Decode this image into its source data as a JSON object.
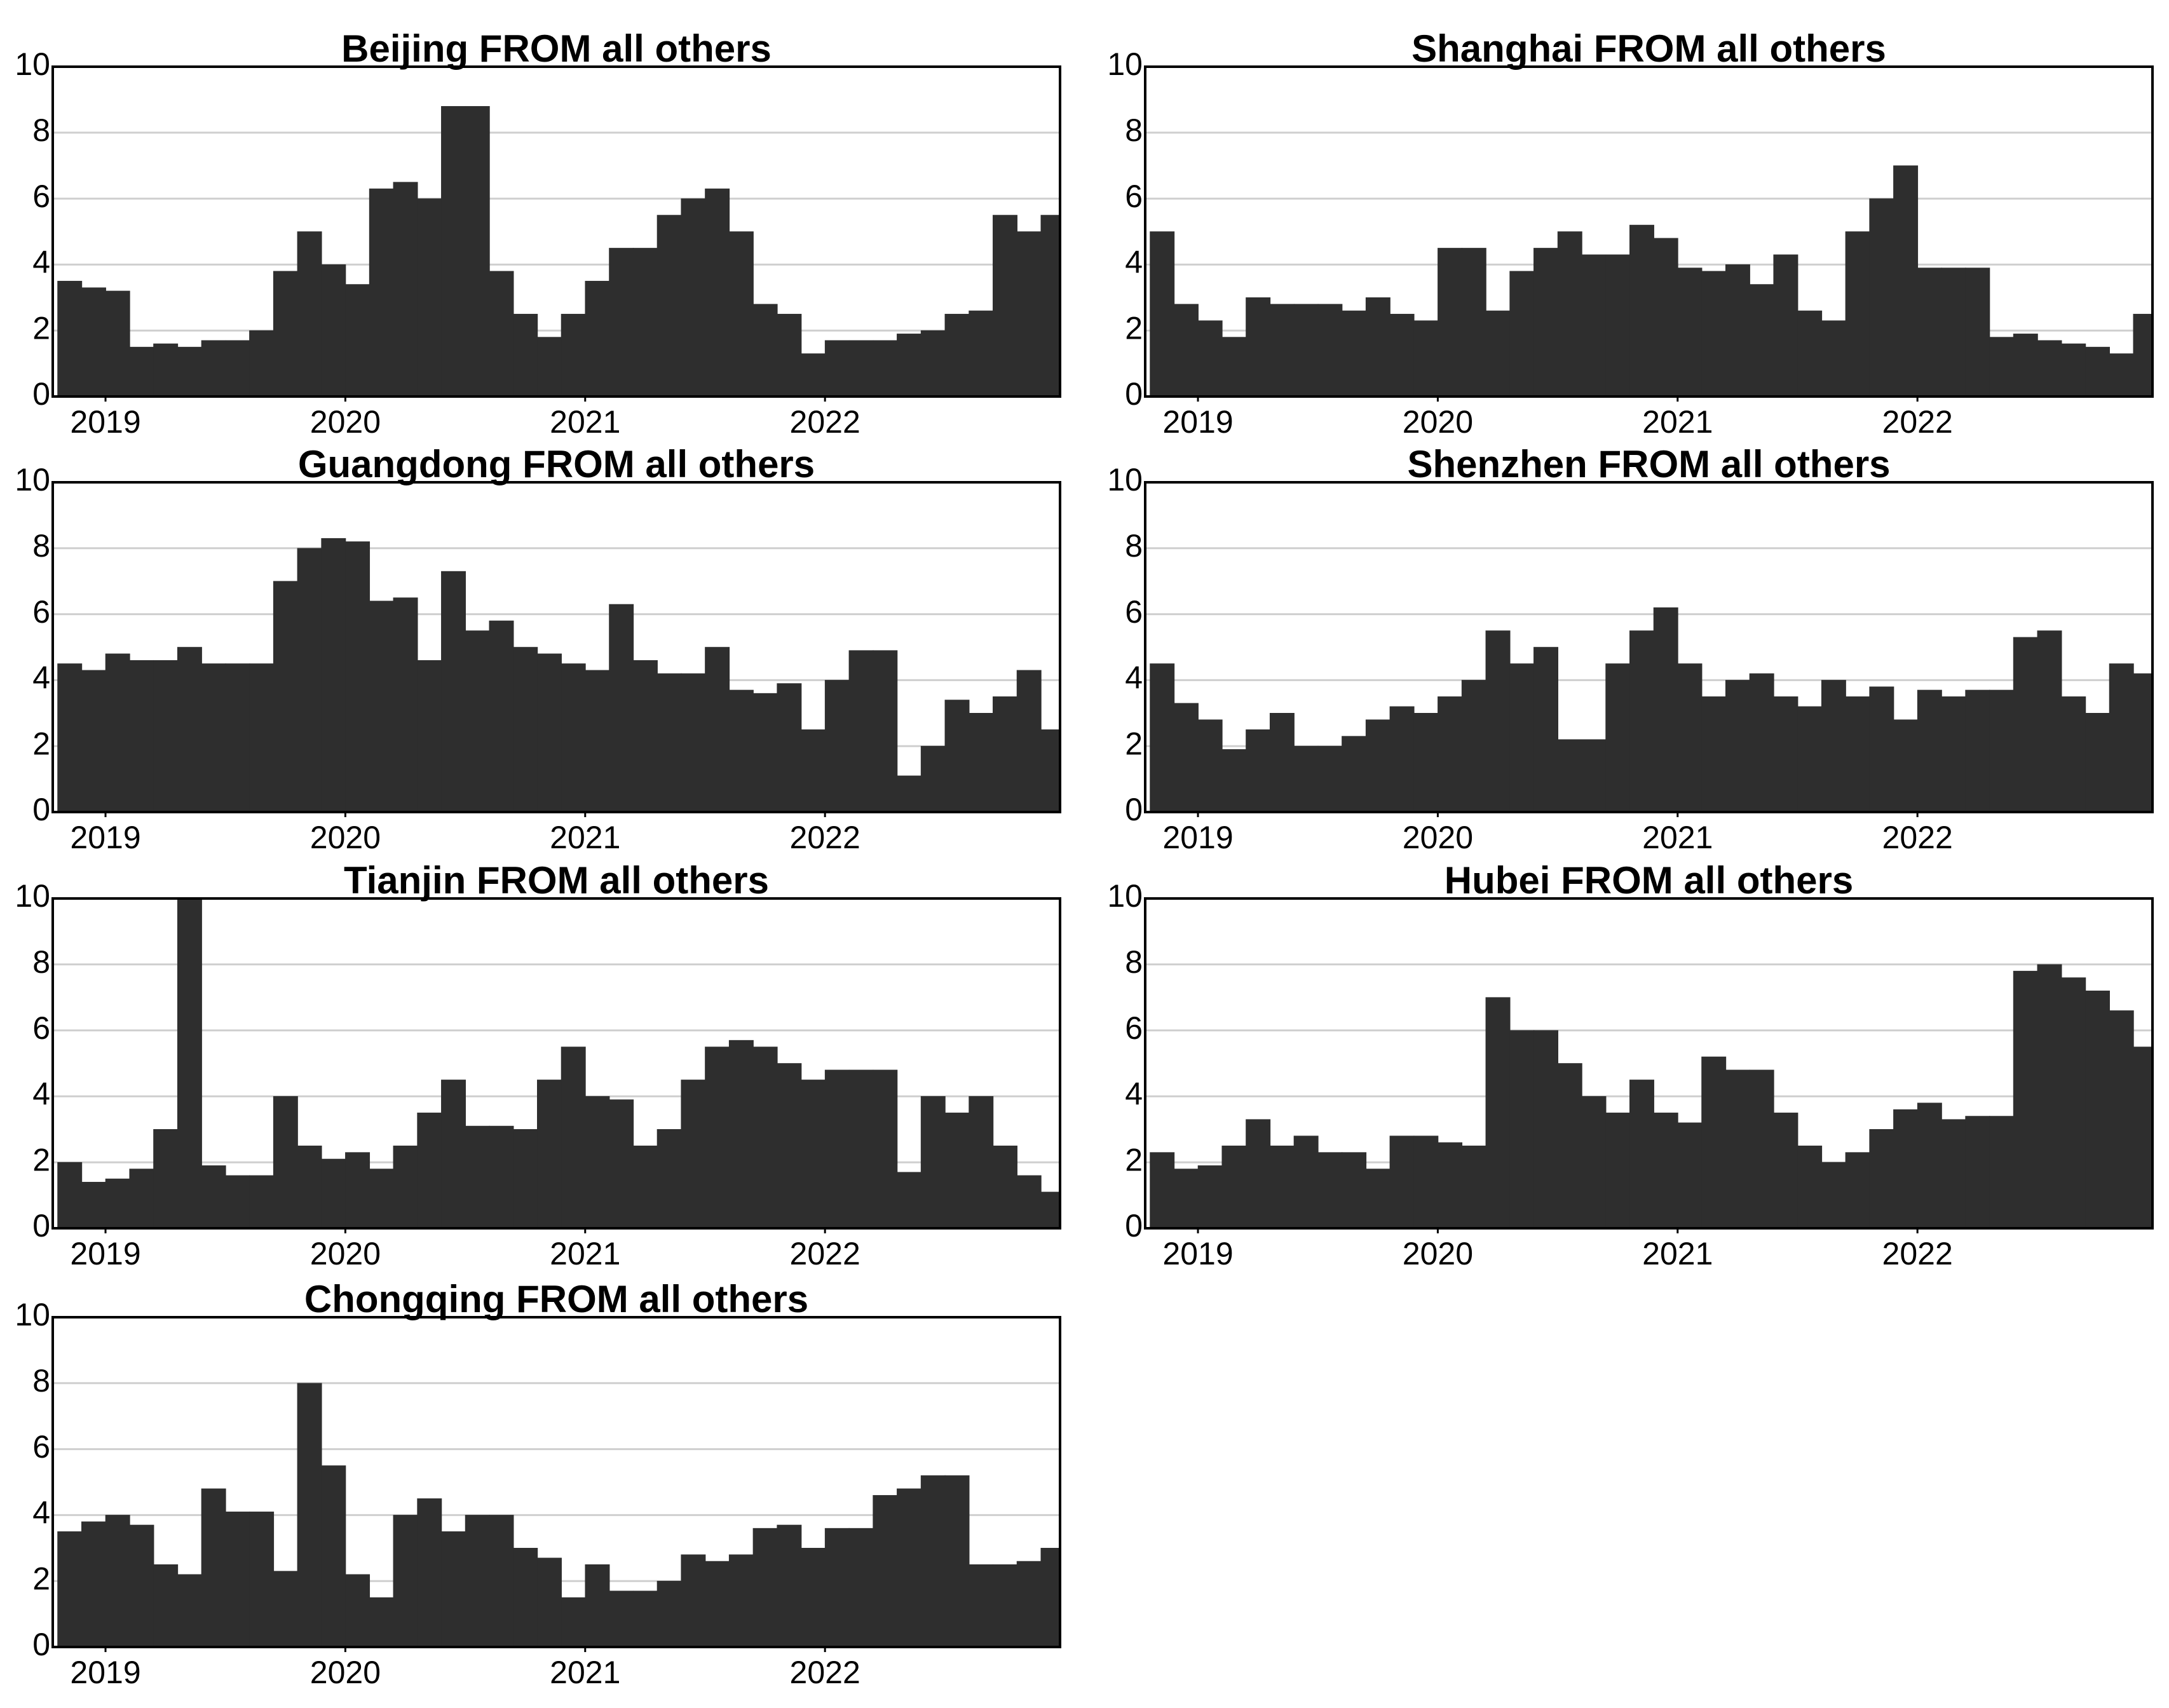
{
  "chart_data": [
    {
      "type": "area",
      "title": "Beijing FROM all others",
      "color": "#2e2e2e",
      "grid": true,
      "x": [
        2018.8,
        2018.9,
        2019.0,
        2019.1,
        2019.2,
        2019.3,
        2019.4,
        2019.5,
        2019.6,
        2019.7,
        2019.8,
        2019.9,
        2020.0,
        2020.1,
        2020.2,
        2020.3,
        2020.4,
        2020.5,
        2020.6,
        2020.7,
        2020.8,
        2020.9,
        2021.0,
        2021.1,
        2021.2,
        2021.3,
        2021.4,
        2021.5,
        2021.6,
        2021.7,
        2021.8,
        2021.9,
        2022.0,
        2022.1,
        2022.2,
        2022.3,
        2022.4,
        2022.5,
        2022.6,
        2022.7,
        2022.8,
        2022.9
      ],
      "values": [
        3.5,
        3.3,
        3.2,
        1.5,
        1.6,
        1.5,
        1.7,
        1.7,
        2.0,
        3.8,
        5.0,
        4.0,
        3.4,
        6.3,
        6.5,
        6.0,
        8.8,
        8.8,
        3.8,
        2.5,
        1.8,
        2.5,
        3.5,
        4.5,
        4.5,
        5.5,
        6.0,
        6.3,
        5.0,
        2.8,
        2.5,
        1.3,
        1.7,
        1.7,
        1.7,
        1.9,
        2.0,
        2.5,
        2.6,
        5.5,
        5.0,
        5.5
      ],
      "xlim": [
        2018.78,
        2022.98
      ],
      "ylim": [
        0,
        10
      ],
      "xticks": [
        2019,
        2020,
        2021,
        2022
      ],
      "yticks": [
        0,
        2,
        4,
        6,
        8,
        10
      ]
    },
    {
      "type": "area",
      "title": "Shanghai FROM all others",
      "color": "#2e2e2e",
      "grid": true,
      "x": [
        2018.8,
        2018.9,
        2019.0,
        2019.1,
        2019.2,
        2019.3,
        2019.4,
        2019.5,
        2019.6,
        2019.7,
        2019.8,
        2019.9,
        2020.0,
        2020.1,
        2020.2,
        2020.3,
        2020.4,
        2020.5,
        2020.6,
        2020.7,
        2020.8,
        2020.9,
        2021.0,
        2021.1,
        2021.2,
        2021.3,
        2021.4,
        2021.5,
        2021.6,
        2021.7,
        2021.8,
        2021.9,
        2022.0,
        2022.1,
        2022.2,
        2022.3,
        2022.4,
        2022.5,
        2022.6,
        2022.7,
        2022.8,
        2022.9
      ],
      "values": [
        5.0,
        2.8,
        2.3,
        1.8,
        3.0,
        2.8,
        2.8,
        2.8,
        2.6,
        3.0,
        2.5,
        2.3,
        4.5,
        4.5,
        2.6,
        3.8,
        4.5,
        5.0,
        4.3,
        4.3,
        5.2,
        4.8,
        3.9,
        3.8,
        4.0,
        3.4,
        4.3,
        2.6,
        2.3,
        5.0,
        6.0,
        7.0,
        3.9,
        3.9,
        3.9,
        1.8,
        1.9,
        1.7,
        1.6,
        1.5,
        1.3,
        2.5
      ],
      "xlim": [
        2018.78,
        2022.98
      ],
      "ylim": [
        0,
        10
      ],
      "xticks": [
        2019,
        2020,
        2021,
        2022
      ],
      "yticks": [
        0,
        2,
        4,
        6,
        8,
        10
      ]
    },
    {
      "type": "area",
      "title": "Guangdong FROM all others",
      "color": "#2e2e2e",
      "grid": true,
      "x": [
        2018.8,
        2018.9,
        2019.0,
        2019.1,
        2019.2,
        2019.3,
        2019.4,
        2019.5,
        2019.6,
        2019.7,
        2019.8,
        2019.9,
        2020.0,
        2020.1,
        2020.2,
        2020.3,
        2020.4,
        2020.5,
        2020.6,
        2020.7,
        2020.8,
        2020.9,
        2021.0,
        2021.1,
        2021.2,
        2021.3,
        2021.4,
        2021.5,
        2021.6,
        2021.7,
        2021.8,
        2021.9,
        2022.0,
        2022.1,
        2022.2,
        2022.3,
        2022.4,
        2022.5,
        2022.6,
        2022.7,
        2022.8,
        2022.9
      ],
      "values": [
        4.5,
        4.3,
        4.8,
        4.6,
        4.6,
        5.0,
        4.5,
        4.5,
        4.5,
        7.0,
        8.0,
        8.3,
        8.2,
        6.4,
        6.5,
        4.6,
        7.3,
        5.5,
        5.8,
        5.0,
        4.8,
        4.5,
        4.3,
        6.3,
        4.6,
        4.2,
        4.2,
        5.0,
        3.7,
        3.6,
        3.9,
        2.5,
        4.0,
        4.9,
        4.9,
        1.1,
        2.0,
        3.4,
        3.0,
        3.5,
        4.3,
        2.5
      ],
      "xlim": [
        2018.78,
        2022.98
      ],
      "ylim": [
        0,
        10
      ],
      "xticks": [
        2019,
        2020,
        2021,
        2022
      ],
      "yticks": [
        0,
        2,
        4,
        6,
        8,
        10
      ]
    },
    {
      "type": "area",
      "title": "Shenzhen FROM all others",
      "color": "#2e2e2e",
      "grid": true,
      "x": [
        2018.8,
        2018.9,
        2019.0,
        2019.1,
        2019.2,
        2019.3,
        2019.4,
        2019.5,
        2019.6,
        2019.7,
        2019.8,
        2019.9,
        2020.0,
        2020.1,
        2020.2,
        2020.3,
        2020.4,
        2020.5,
        2020.6,
        2020.7,
        2020.8,
        2020.9,
        2021.0,
        2021.1,
        2021.2,
        2021.3,
        2021.4,
        2021.5,
        2021.6,
        2021.7,
        2021.8,
        2021.9,
        2022.0,
        2022.1,
        2022.2,
        2022.3,
        2022.4,
        2022.5,
        2022.6,
        2022.7,
        2022.8,
        2022.9
      ],
      "values": [
        4.5,
        3.3,
        2.8,
        1.9,
        2.5,
        3.0,
        2.0,
        2.0,
        2.3,
        2.8,
        3.2,
        3.0,
        3.5,
        4.0,
        5.5,
        4.5,
        5.0,
        2.2,
        2.2,
        4.5,
        5.5,
        6.2,
        4.5,
        3.5,
        4.0,
        4.2,
        3.5,
        3.2,
        4.0,
        3.5,
        3.8,
        2.8,
        3.7,
        3.5,
        3.7,
        3.7,
        5.3,
        5.5,
        3.5,
        3.0,
        4.5,
        4.2
      ],
      "xlim": [
        2018.78,
        2022.98
      ],
      "ylim": [
        0,
        10
      ],
      "xticks": [
        2019,
        2020,
        2021,
        2022
      ],
      "yticks": [
        0,
        2,
        4,
        6,
        8,
        10
      ]
    },
    {
      "type": "area",
      "title": "Tianjin FROM all others",
      "color": "#2e2e2e",
      "grid": true,
      "x": [
        2018.8,
        2018.9,
        2019.0,
        2019.1,
        2019.2,
        2019.3,
        2019.4,
        2019.5,
        2019.6,
        2019.7,
        2019.8,
        2019.9,
        2020.0,
        2020.1,
        2020.2,
        2020.3,
        2020.4,
        2020.5,
        2020.6,
        2020.7,
        2020.8,
        2020.9,
        2021.0,
        2021.1,
        2021.2,
        2021.3,
        2021.4,
        2021.5,
        2021.6,
        2021.7,
        2021.8,
        2021.9,
        2022.0,
        2022.1,
        2022.2,
        2022.3,
        2022.4,
        2022.5,
        2022.6,
        2022.7,
        2022.8,
        2022.9
      ],
      "values": [
        2.0,
        1.4,
        1.5,
        1.8,
        3.0,
        10.0,
        1.9,
        1.6,
        1.6,
        4.0,
        2.5,
        2.1,
        2.3,
        1.8,
        2.5,
        3.5,
        4.5,
        3.1,
        3.1,
        3.0,
        4.5,
        5.5,
        4.0,
        3.9,
        2.5,
        3.0,
        4.5,
        5.5,
        5.7,
        5.5,
        5.0,
        4.5,
        4.8,
        4.8,
        4.8,
        1.7,
        4.0,
        3.5,
        4.0,
        2.5,
        1.6,
        1.1
      ],
      "xlim": [
        2018.78,
        2022.98
      ],
      "ylim": [
        0,
        10
      ],
      "xticks": [
        2019,
        2020,
        2021,
        2022
      ],
      "yticks": [
        0,
        2,
        4,
        6,
        8,
        10
      ]
    },
    {
      "type": "area",
      "title": "Hubei FROM all others",
      "color": "#2e2e2e",
      "grid": true,
      "x": [
        2018.8,
        2018.9,
        2019.0,
        2019.1,
        2019.2,
        2019.3,
        2019.4,
        2019.5,
        2019.6,
        2019.7,
        2019.8,
        2019.9,
        2020.0,
        2020.1,
        2020.2,
        2020.3,
        2020.4,
        2020.5,
        2020.6,
        2020.7,
        2020.8,
        2020.9,
        2021.0,
        2021.1,
        2021.2,
        2021.3,
        2021.4,
        2021.5,
        2021.6,
        2021.7,
        2021.8,
        2021.9,
        2022.0,
        2022.1,
        2022.2,
        2022.3,
        2022.4,
        2022.5,
        2022.6,
        2022.7,
        2022.8,
        2022.9
      ],
      "values": [
        2.3,
        1.8,
        1.9,
        2.5,
        3.3,
        2.5,
        2.8,
        2.3,
        2.3,
        1.8,
        2.8,
        2.8,
        2.6,
        2.5,
        7.0,
        6.0,
        6.0,
        5.0,
        4.0,
        3.5,
        4.5,
        3.5,
        3.2,
        5.2,
        4.8,
        4.8,
        3.5,
        2.5,
        2.0,
        2.3,
        3.0,
        3.6,
        3.8,
        3.3,
        3.4,
        3.4,
        7.8,
        8.0,
        7.6,
        7.2,
        6.6,
        5.5
      ],
      "xlim": [
        2018.78,
        2022.98
      ],
      "ylim": [
        0,
        10
      ],
      "xticks": [
        2019,
        2020,
        2021,
        2022
      ],
      "yticks": [
        0,
        2,
        4,
        6,
        8,
        10
      ]
    },
    {
      "type": "area",
      "title": "Chongqing FROM all others",
      "color": "#2e2e2e",
      "grid": true,
      "x": [
        2018.8,
        2018.9,
        2019.0,
        2019.1,
        2019.2,
        2019.3,
        2019.4,
        2019.5,
        2019.6,
        2019.7,
        2019.8,
        2019.9,
        2020.0,
        2020.1,
        2020.2,
        2020.3,
        2020.4,
        2020.5,
        2020.6,
        2020.7,
        2020.8,
        2020.9,
        2021.0,
        2021.1,
        2021.2,
        2021.3,
        2021.4,
        2021.5,
        2021.6,
        2021.7,
        2021.8,
        2021.9,
        2022.0,
        2022.1,
        2022.2,
        2022.3,
        2022.4,
        2022.5,
        2022.6,
        2022.7,
        2022.8,
        2022.9
      ],
      "values": [
        3.5,
        3.8,
        4.0,
        3.7,
        2.5,
        2.2,
        4.8,
        4.1,
        4.1,
        2.3,
        8.0,
        5.5,
        2.2,
        1.5,
        4.0,
        4.5,
        3.5,
        4.0,
        4.0,
        3.0,
        2.7,
        1.5,
        2.5,
        1.7,
        1.7,
        2.0,
        2.8,
        2.6,
        2.8,
        3.6,
        3.7,
        3.0,
        3.6,
        3.6,
        4.6,
        4.8,
        5.2,
        5.2,
        2.5,
        2.5,
        2.6,
        3.0
      ],
      "xlim": [
        2018.78,
        2022.98
      ],
      "ylim": [
        0,
        10
      ],
      "xticks": [
        2019,
        2020,
        2021,
        2022
      ],
      "yticks": [
        0,
        2,
        4,
        6,
        8,
        10
      ]
    }
  ]
}
